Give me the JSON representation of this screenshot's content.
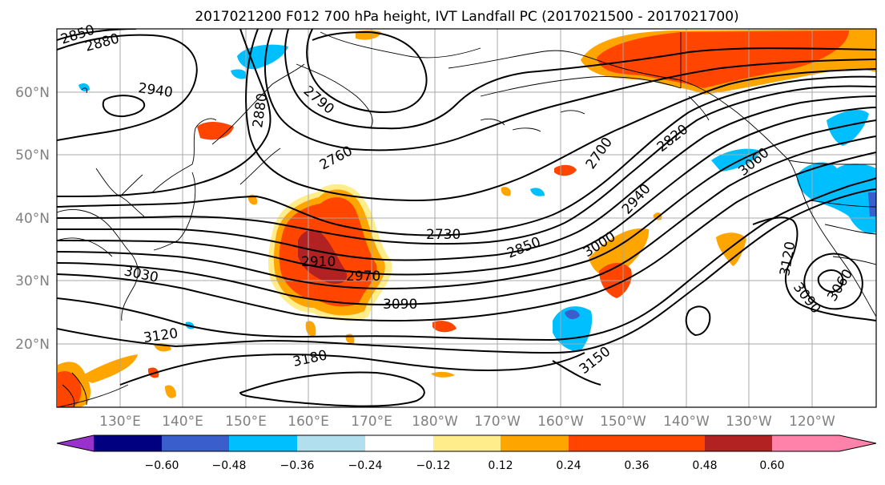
{
  "title": "2017021200 F012 700 hPa height, IVT Landfall PC (2017021500 - 2017021700)",
  "map": {
    "lat_labels": [
      "60°N",
      "50°N",
      "40°N",
      "30°N",
      "20°N"
    ],
    "lon_labels": [
      "130°E",
      "140°E",
      "150°E",
      "160°E",
      "170°E",
      "180°W",
      "170°W",
      "160°W",
      "150°W",
      "140°W",
      "130°W",
      "120°W"
    ],
    "grid": true,
    "contour_color": "#000000",
    "coastline_color": "#000000"
  },
  "contour_labels": [
    "2850",
    "2880",
    "2940",
    "2880",
    "2790",
    "2760",
    "2730",
    "2700",
    "2820",
    "2940",
    "3060",
    "2910",
    "2970",
    "2850",
    "3000",
    "3090",
    "3030",
    "3120",
    "3180",
    "3150",
    "3120",
    "3090",
    "3060"
  ],
  "colorbar": {
    "colors": [
      "#9932cc",
      "#000080",
      "#3a5fcd",
      "#00bfff",
      "#b2dfee",
      "#ffffff",
      "#ffec8b",
      "#ffa500",
      "#ff4500",
      "#b22222",
      "#ff82ab"
    ],
    "tick_labels": [
      "−0.60",
      "−0.48",
      "−0.36",
      "−0.24",
      "−0.12",
      "0.12",
      "0.24",
      "0.36",
      "0.48",
      "0.60"
    ]
  }
}
